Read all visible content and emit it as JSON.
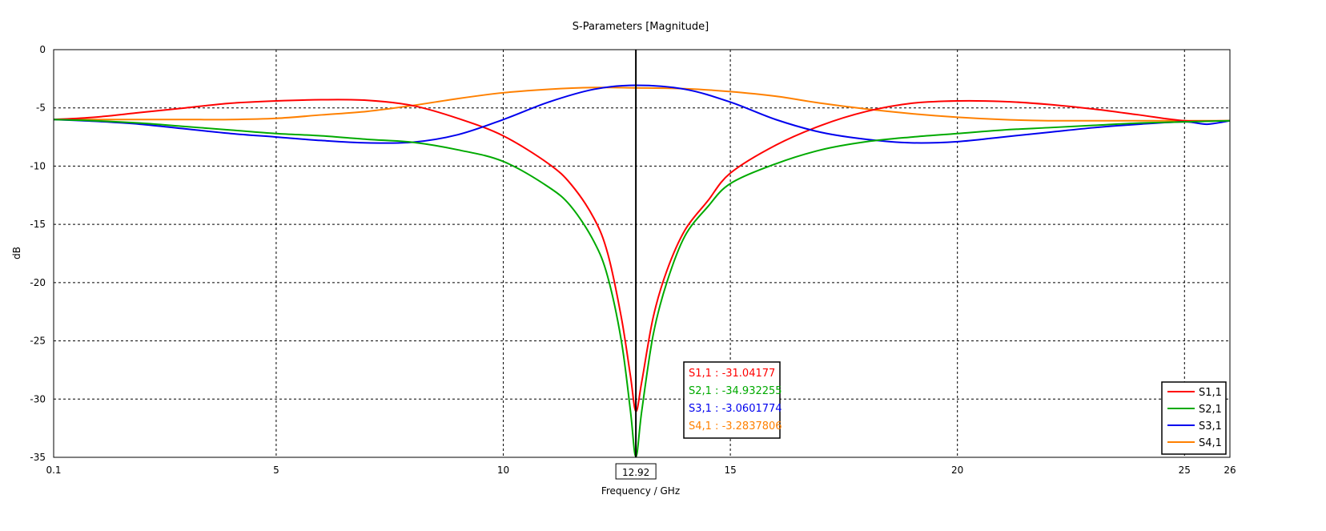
{
  "chart_data": {
    "type": "line",
    "title": "S-Parameters [Magnitude]",
    "xlabel": "Frequency / GHz",
    "ylabel": "dB",
    "xlim": [
      0.1,
      26
    ],
    "ylim": [
      -35,
      0
    ],
    "xticks": [
      0.1,
      5,
      10,
      15,
      20,
      25,
      26
    ],
    "yticks": [
      0,
      -5,
      -10,
      -15,
      -20,
      -25,
      -30,
      -35
    ],
    "grid": true,
    "legend_position": "bottom-right",
    "marker": {
      "x_label": "12.92",
      "x": 12.92
    },
    "series": [
      {
        "name": "S1,1",
        "color": "#ff0000",
        "marker_readout": "S1,1 : -31.04177",
        "points": [
          [
            0.1,
            -6.0
          ],
          [
            1,
            -5.8
          ],
          [
            2,
            -5.4
          ],
          [
            3,
            -5.0
          ],
          [
            4,
            -4.6
          ],
          [
            5,
            -4.4
          ],
          [
            6,
            -4.3
          ],
          [
            7,
            -4.35
          ],
          [
            8,
            -4.8
          ],
          [
            9,
            -5.9
          ],
          [
            10,
            -7.4
          ],
          [
            11,
            -9.8
          ],
          [
            11.5,
            -11.6
          ],
          [
            12,
            -14.5
          ],
          [
            12.3,
            -17.5
          ],
          [
            12.6,
            -23.0
          ],
          [
            12.8,
            -28.0
          ],
          [
            12.92,
            -31.04
          ],
          [
            13.05,
            -28.5
          ],
          [
            13.3,
            -23.0
          ],
          [
            13.6,
            -19.0
          ],
          [
            14,
            -15.5
          ],
          [
            14.5,
            -13.0
          ],
          [
            15,
            -10.6
          ],
          [
            16,
            -8.2
          ],
          [
            17,
            -6.5
          ],
          [
            18,
            -5.3
          ],
          [
            19,
            -4.6
          ],
          [
            20,
            -4.4
          ],
          [
            21,
            -4.45
          ],
          [
            22,
            -4.7
          ],
          [
            23,
            -5.1
          ],
          [
            24,
            -5.6
          ],
          [
            25,
            -6.1
          ],
          [
            26,
            -6.1
          ]
        ]
      },
      {
        "name": "S2,1",
        "color": "#00aa00",
        "marker_readout": "S2,1 : -34.932255",
        "points": [
          [
            0.1,
            -6.0
          ],
          [
            1,
            -6.1
          ],
          [
            2,
            -6.3
          ],
          [
            3,
            -6.6
          ],
          [
            4,
            -6.9
          ],
          [
            5,
            -7.2
          ],
          [
            6,
            -7.4
          ],
          [
            7,
            -7.7
          ],
          [
            8,
            -7.95
          ],
          [
            9,
            -8.6
          ],
          [
            10,
            -9.6
          ],
          [
            11,
            -11.8
          ],
          [
            11.5,
            -13.5
          ],
          [
            12,
            -16.5
          ],
          [
            12.3,
            -19.5
          ],
          [
            12.6,
            -25.0
          ],
          [
            12.8,
            -31.0
          ],
          [
            12.92,
            -34.93
          ],
          [
            13.05,
            -31.0
          ],
          [
            13.3,
            -24.5
          ],
          [
            13.6,
            -20.0
          ],
          [
            14,
            -16.0
          ],
          [
            14.5,
            -13.5
          ],
          [
            15,
            -11.5
          ],
          [
            16,
            -9.8
          ],
          [
            17,
            -8.6
          ],
          [
            18,
            -7.9
          ],
          [
            19,
            -7.5
          ],
          [
            20,
            -7.2
          ],
          [
            21,
            -6.9
          ],
          [
            22,
            -6.7
          ],
          [
            23,
            -6.5
          ],
          [
            24,
            -6.3
          ],
          [
            25,
            -6.2
          ],
          [
            26,
            -6.1
          ]
        ]
      },
      {
        "name": "S3,1",
        "color": "#0000ee",
        "marker_readout": "S3,1 : -3.0601774",
        "points": [
          [
            0.1,
            -6.0
          ],
          [
            1,
            -6.15
          ],
          [
            2,
            -6.4
          ],
          [
            3,
            -6.8
          ],
          [
            4,
            -7.2
          ],
          [
            5,
            -7.5
          ],
          [
            6,
            -7.8
          ],
          [
            7,
            -8.0
          ],
          [
            8,
            -7.95
          ],
          [
            9,
            -7.3
          ],
          [
            10,
            -6.0
          ],
          [
            11,
            -4.5
          ],
          [
            12,
            -3.4
          ],
          [
            12.92,
            -3.06
          ],
          [
            14,
            -3.4
          ],
          [
            15,
            -4.5
          ],
          [
            16,
            -6.0
          ],
          [
            17,
            -7.1
          ],
          [
            18,
            -7.7
          ],
          [
            19,
            -8.0
          ],
          [
            20,
            -7.9
          ],
          [
            21,
            -7.5
          ],
          [
            22,
            -7.1
          ],
          [
            23,
            -6.7
          ],
          [
            24,
            -6.4
          ],
          [
            25,
            -6.2
          ],
          [
            25.5,
            -6.4
          ],
          [
            26,
            -6.1
          ]
        ]
      },
      {
        "name": "S4,1",
        "color": "#ff8000",
        "marker_readout": "S4,1 : -3.2837806",
        "points": [
          [
            0.1,
            -6.0
          ],
          [
            1,
            -6.0
          ],
          [
            2,
            -6.0
          ],
          [
            3,
            -6.0
          ],
          [
            4,
            -6.0
          ],
          [
            5,
            -5.9
          ],
          [
            6,
            -5.6
          ],
          [
            7,
            -5.3
          ],
          [
            8,
            -4.8
          ],
          [
            9,
            -4.2
          ],
          [
            10,
            -3.7
          ],
          [
            11,
            -3.4
          ],
          [
            12,
            -3.25
          ],
          [
            12.92,
            -3.28
          ],
          [
            14,
            -3.35
          ],
          [
            15,
            -3.6
          ],
          [
            16,
            -4.0
          ],
          [
            17,
            -4.6
          ],
          [
            18,
            -5.1
          ],
          [
            19,
            -5.5
          ],
          [
            20,
            -5.8
          ],
          [
            21,
            -6.0
          ],
          [
            22,
            -6.1
          ],
          [
            23,
            -6.1
          ],
          [
            24,
            -6.1
          ],
          [
            25,
            -6.1
          ],
          [
            25.5,
            -6.1
          ],
          [
            26,
            -6.1
          ]
        ]
      }
    ]
  }
}
